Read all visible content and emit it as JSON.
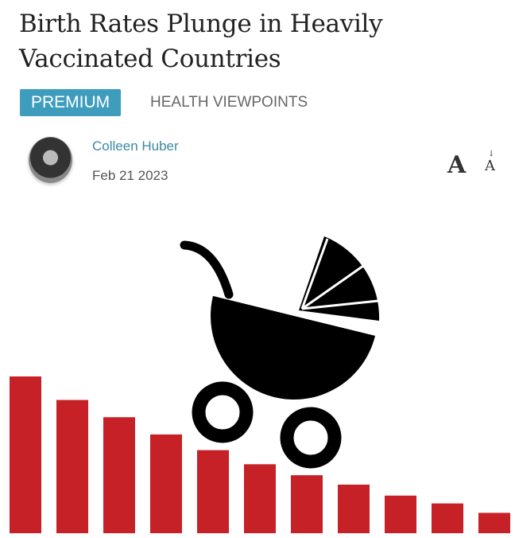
{
  "article": {
    "title": "Birth Rates Plunge in Heavily Vaccinated Countries",
    "badge": "PREMIUM",
    "category": "HEALTH VIEWPOINTS",
    "author": "Colleen Huber",
    "date": "Feb 21 2023",
    "font_size_large": "A",
    "font_size_small": "A"
  },
  "colors": {
    "accent": "#3e9dbd",
    "bars": "#c62127",
    "pram": "#000000"
  },
  "illustration": {
    "relative_bar_heights": [
      1.0,
      0.85,
      0.74,
      0.63,
      0.53,
      0.44,
      0.37,
      0.31,
      0.24,
      0.19,
      0.13
    ]
  }
}
